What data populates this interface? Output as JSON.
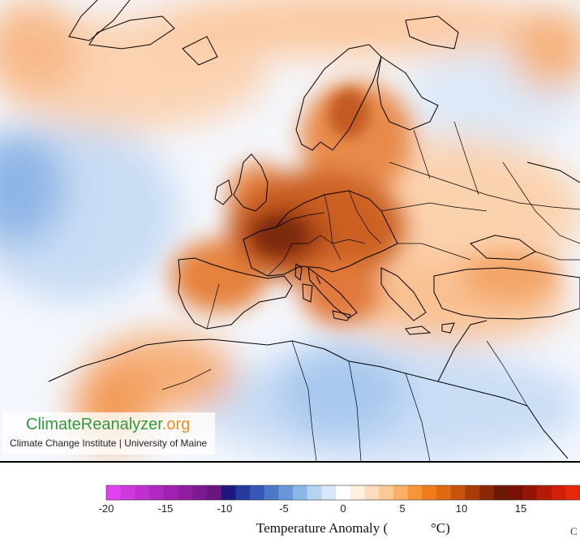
{
  "logo": {
    "name_main": "ClimateReanalyzer",
    "name_ext": ".org",
    "subtitle": "Climate Change Institute | University of Maine"
  },
  "legend": {
    "title": "Temperature Anomaly (",
    "unit": "°C)",
    "ticks": [
      "-20",
      "-15",
      "-10",
      "-5",
      "0",
      "5",
      "10",
      "15"
    ],
    "min": -20,
    "max": 20,
    "colors": [
      "#e040f0",
      "#d038e0",
      "#c030d0",
      "#b028c0",
      "#a020b0",
      "#901ca0",
      "#7e1890",
      "#6c1480",
      "#1c1880",
      "#243a9c",
      "#3458b4",
      "#4c78c8",
      "#6898da",
      "#8cb8e8",
      "#b4d4f2",
      "#d8e8f8",
      "#ffffff",
      "#fff0e0",
      "#fddcbc",
      "#fcc894",
      "#faaf66",
      "#f5953a",
      "#ee7c1a",
      "#e06810",
      "#c8520c",
      "#aa3c08",
      "#8c2806",
      "#6c1804",
      "#7a1004",
      "#961406",
      "#b41a08",
      "#d02008",
      "#e62a0a"
    ]
  },
  "corner_mark": "C"
}
